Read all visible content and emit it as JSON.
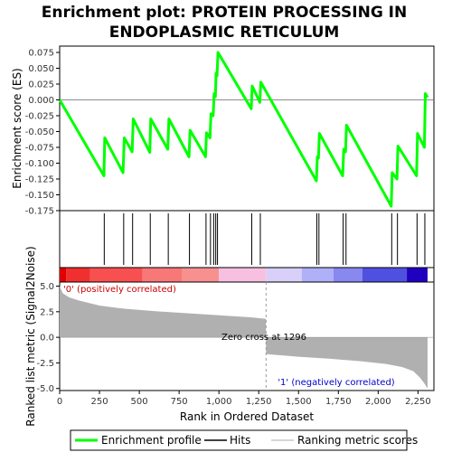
{
  "chart_data": {
    "type": "line",
    "title_line1": "Enrichment plot: PROTEIN PROCESSING IN",
    "title_line2": "ENDOPLASMIC RETICULUM",
    "xlabel": "Rank in Ordered Dataset",
    "ylabel_top": "Enrichment score (ES)",
    "ylabel_bottom": "Ranked list metric (Signal2Noise)",
    "xlim": [
      0,
      2350
    ],
    "ylim_top": [
      -0.175,
      0.085
    ],
    "ylim_bottom": [
      -5.2,
      5.4
    ],
    "x_ticks": [
      0,
      250,
      500,
      750,
      1000,
      1250,
      1500,
      1750,
      2000,
      2250
    ],
    "x_tick_labels": [
      "0",
      "250",
      "500",
      "750",
      "1,000",
      "1,250",
      "1,500",
      "1,750",
      "2,000",
      "2,250"
    ],
    "y_ticks_top": [
      0.075,
      0.05,
      0.025,
      0.0,
      -0.025,
      -0.05,
      -0.075,
      -0.1,
      -0.125,
      -0.15,
      -0.175
    ],
    "y_tick_labels_top": [
      "0.075",
      "0.050",
      "0.025",
      "0.000",
      "-0.025",
      "-0.050",
      "-0.075",
      "-0.100",
      "-0.125",
      "-0.150",
      "-0.175"
    ],
    "y_ticks_bottom": [
      5.0,
      2.5,
      0.0,
      -2.5,
      -5.0
    ],
    "y_tick_labels_bottom": [
      "5.0",
      "2.5",
      "0.0",
      "-2.5",
      "-5.0"
    ],
    "es_curve": {
      "name": "Enrichment profile",
      "color": "#00ff00",
      "x": [
        0,
        278,
        283,
        398,
        406,
        455,
        462,
        566,
        572,
        679,
        686,
        812,
        819,
        916,
        922,
        944,
        950,
        964,
        970,
        978,
        982,
        988,
        994,
        1203,
        1209,
        1257,
        1263,
        1612,
        1618,
        1625,
        1631,
        1777,
        1784,
        1795,
        1801,
        2082,
        2088,
        2118,
        2124,
        2241,
        2247,
        2290,
        2296,
        2310
      ],
      "y": [
        0.0,
        -0.12,
        -0.06,
        -0.115,
        -0.06,
        -0.082,
        -0.03,
        -0.083,
        -0.03,
        -0.078,
        -0.03,
        -0.09,
        -0.048,
        -0.09,
        -0.052,
        -0.06,
        -0.022,
        -0.025,
        0.01,
        0.005,
        0.042,
        0.038,
        0.075,
        -0.014,
        0.022,
        -0.004,
        0.028,
        -0.128,
        -0.09,
        -0.092,
        -0.053,
        -0.12,
        -0.078,
        -0.082,
        -0.04,
        -0.168,
        -0.115,
        -0.125,
        -0.073,
        -0.12,
        -0.053,
        -0.075,
        0.01,
        0.004
      ]
    },
    "hits": {
      "name": "Hits",
      "positions": [
        280,
        402,
        458,
        569,
        682,
        815,
        919,
        947,
        967,
        980,
        991,
        1206,
        1260,
        1615,
        1628,
        1780,
        1798,
        2085,
        2121,
        2244,
        2293
      ]
    },
    "ranking_metric": {
      "name": "Ranking metric scores",
      "color": "#b0b0b0",
      "x": [
        0,
        20,
        60,
        120,
        250,
        400,
        600,
        800,
        1000,
        1200,
        1295,
        1296,
        1300,
        1500,
        1700,
        1900,
        2050,
        2150,
        2220,
        2260,
        2290,
        2310
      ],
      "y": [
        5.0,
        4.3,
        3.9,
        3.6,
        3.1,
        2.8,
        2.55,
        2.35,
        2.15,
        1.95,
        1.8,
        -1.6,
        -1.65,
        -1.9,
        -2.1,
        -2.35,
        -2.6,
        -2.9,
        -3.3,
        -3.9,
        -4.5,
        -5.0
      ]
    },
    "zero_cross_label": "Zero cross at 1296",
    "zero_cross_x": 1296,
    "positive_label": "'0' (positively correlated)",
    "negative_label": "'1' (negatively correlated)",
    "positive_color": "#cc0000",
    "negative_color": "#0000cc",
    "colorbar_segments": [
      {
        "start": 0,
        "end": 40,
        "color": "#e00000"
      },
      {
        "start": 40,
        "end": 190,
        "color": "#f03030"
      },
      {
        "start": 190,
        "end": 520,
        "color": "#f85050"
      },
      {
        "start": 520,
        "end": 770,
        "color": "#f87878"
      },
      {
        "start": 770,
        "end": 1000,
        "color": "#f89090"
      },
      {
        "start": 1000,
        "end": 1296,
        "color": "#f8c0e0"
      },
      {
        "start": 1296,
        "end": 1520,
        "color": "#d8d0f8"
      },
      {
        "start": 1520,
        "end": 1720,
        "color": "#b0b0f8"
      },
      {
        "start": 1720,
        "end": 1900,
        "color": "#8888f0"
      },
      {
        "start": 1900,
        "end": 2180,
        "color": "#5050e0"
      },
      {
        "start": 2180,
        "end": 2310,
        "color": "#2000c0"
      }
    ],
    "legend": [
      "Enrichment profile",
      "Hits",
      "Ranking metric scores"
    ]
  }
}
